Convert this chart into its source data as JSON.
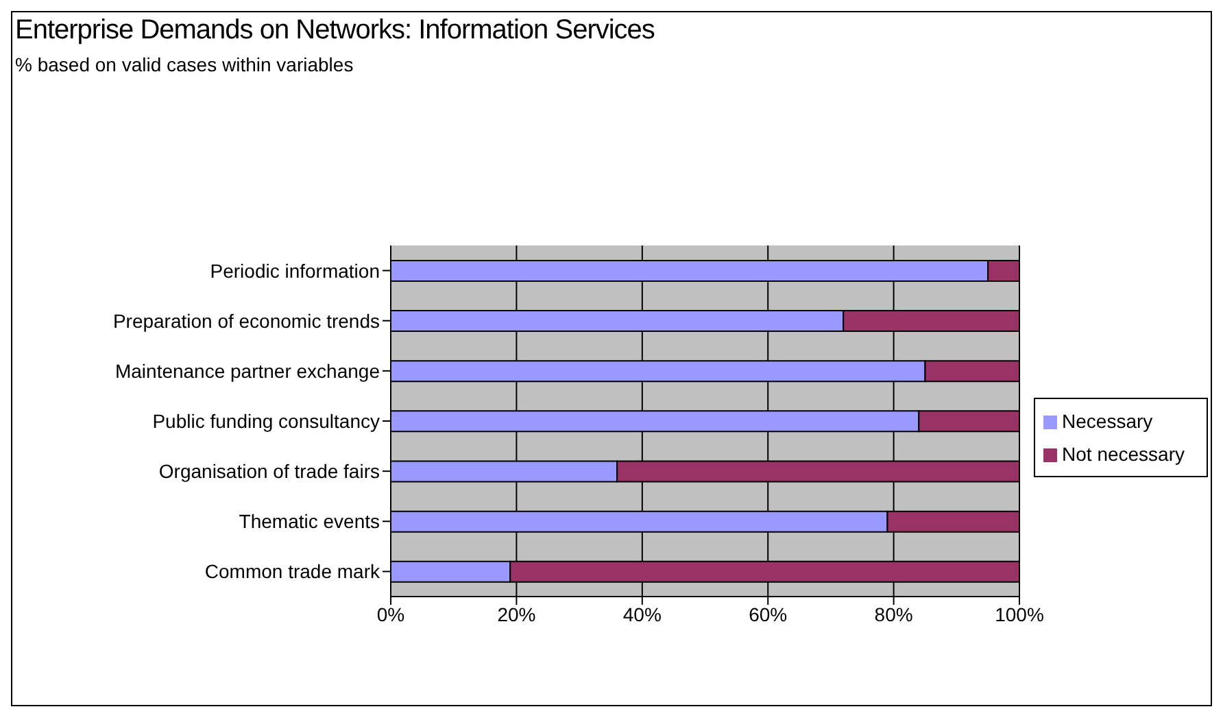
{
  "chart_data": {
    "type": "bar",
    "title": "Enterprise Demands on Networks: Information Services",
    "subtitle": "% based on valid cases within variables",
    "orientation": "horizontal",
    "stacked": true,
    "categories": [
      "Periodic information",
      "Preparation of economic trends",
      "Maintenance partner exchange",
      "Public funding consultancy",
      "Organisation of trade fairs",
      "Thematic events",
      "Common trade mark"
    ],
    "series": [
      {
        "name": "Necessary",
        "color": "#9999ff",
        "values": [
          95,
          72,
          85,
          84,
          36,
          79,
          19
        ]
      },
      {
        "name": "Not necessary",
        "color": "#993366",
        "values": [
          5,
          28,
          15,
          16,
          64,
          21,
          81
        ]
      }
    ],
    "xlim": [
      0,
      100
    ],
    "xticks": [
      {
        "value": 0,
        "label": "0%"
      },
      {
        "value": 20,
        "label": "20%"
      },
      {
        "value": 40,
        "label": "40%"
      },
      {
        "value": 60,
        "label": "60%"
      },
      {
        "value": 80,
        "label": "80%"
      },
      {
        "value": 100,
        "label": "100%"
      }
    ],
    "grid": "x",
    "legend": "right"
  }
}
